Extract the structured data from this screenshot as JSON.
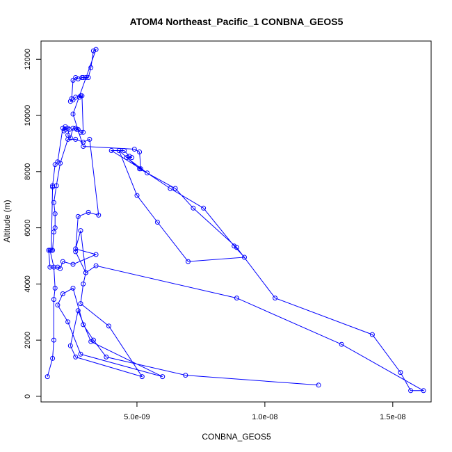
{
  "chart_data": {
    "type": "line",
    "title": "ATOM4 Northeast_Pacific_1 CONBNA_GEOS5",
    "xlabel": "CONBNA_GEOS5",
    "ylabel": "Altitude (m)",
    "xlim": [
      1.25e-09,
      1.65e-08
    ],
    "ylim": [
      -200,
      12650
    ],
    "xticks": [
      5e-09,
      1e-08,
      1.5e-08
    ],
    "xtick_labels": [
      "5.0e-09",
      "1.0e-08",
      "1.5e-08"
    ],
    "yticks": [
      0,
      2000,
      4000,
      6000,
      8000,
      10000,
      12000
    ],
    "ytick_labels": [
      "0",
      "2000",
      "4000",
      "6000",
      "8000",
      "10000",
      "12000"
    ],
    "grid": false,
    "legend": "none",
    "color": "#0000ff",
    "marker": "open-circle",
    "x": [
      1.5e-09,
      1.7e-09,
      1.75e-09,
      1.75e-09,
      1.8e-09,
      1.75e-09,
      1.6e-09,
      1.7e-09,
      1.75e-09,
      1.8e-09,
      1.8e-09,
      1.75e-09,
      1.85e-09,
      2e-09,
      2.3e-09,
      2.6e-09,
      2.9e-09,
      3.15e-09,
      3.5e-09,
      3.1e-09,
      2.7e-09,
      2.6e-09,
      3e-09,
      2.8e-09,
      2.6e-09,
      3.4e-09,
      2.5e-09,
      2.1e-09,
      2e-09,
      1.9e-09,
      1.6e-09,
      1.55e-09,
      1.65e-09,
      1.7e-09,
      1.7e-09,
      1.8e-09,
      1.9e-09,
      2.1e-09,
      2.2e-09,
      2.15e-09,
      2.2e-09,
      2.3e-09,
      2.35e-09,
      2.3e-09,
      2.4e-09,
      2.5e-09,
      2.6e-09,
      2.7e-09,
      2.65e-09,
      2.8e-09,
      2.9e-09,
      2.85e-09,
      2.75e-09,
      2.8e-09,
      2.6e-09,
      2.5e-09,
      2.4e-09,
      2.45e-09,
      2.5e-09,
      2.6e-09,
      2.7e-09,
      2.85e-09,
      2.9e-09,
      3e-09,
      3.1e-09,
      3.2e-09,
      3.3e-09,
      3.4e-09,
      2.5e-09,
      2.9e-09,
      4.9e-09,
      5.1e-09,
      5.15e-09,
      4e-09,
      4.5e-09,
      4.7e-09,
      4.8e-09,
      4.6e-09,
      5.4e-09,
      6.3e-09,
      7.6e-09,
      8.8e-09,
      9.2e-09,
      7e-09,
      5.8e-09,
      5e-09,
      4.3e-09,
      5.1e-09,
      6.5e-09,
      7.2e-09,
      8.9e-09,
      1.04e-08,
      1.42e-08,
      1.53e-08,
      1.57e-08,
      1.62e-08,
      1.3e-08,
      8.9e-09,
      3.4e-09,
      3e-09,
      2.9e-09,
      2.8e-09,
      3.9e-09,
      5.2e-09,
      2.6e-09,
      2.4e-09,
      2.7e-09,
      3.2e-09,
      6e-09,
      2.8e-09,
      2.3e-09,
      1.9e-09,
      2.1e-09,
      2.5e-09,
      2.9e-09,
      3.3e-09,
      3.8e-09,
      6.9e-09,
      1.21e-08
    ],
    "y": [
      700,
      1350,
      2000,
      3450,
      3850,
      4600,
      5200,
      5200,
      5850,
      6000,
      6500,
      6900,
      7500,
      8300,
      9150,
      9150,
      9050,
      9150,
      6450,
      6550,
      6400,
      5150,
      4400,
      5900,
      5250,
      5050,
      4700,
      4800,
      4550,
      4600,
      4600,
      5200,
      5200,
      7450,
      7500,
      8250,
      8350,
      9550,
      9600,
      9450,
      9500,
      9550,
      9500,
      9300,
      9200,
      9550,
      9550,
      9500,
      9500,
      9400,
      9400,
      10700,
      10650,
      10700,
      10650,
      10550,
      10500,
      10600,
      11250,
      11350,
      11300,
      11350,
      11350,
      11350,
      11350,
      11700,
      12300,
      12350,
      10050,
      8900,
      8800,
      8700,
      8100,
      8750,
      8750,
      8550,
      8500,
      8500,
      7950,
      7400,
      6700,
      5350,
      4950,
      4800,
      6200,
      7150,
      8750,
      8100,
      7400,
      6700,
      5300,
      3500,
      2200,
      850,
      200,
      200,
      1850,
      3500,
      4650,
      4400,
      4000,
      3300,
      2500,
      700,
      1400,
      1800,
      3050,
      1950,
      700,
      1500,
      2650,
      3250,
      3650,
      3850,
      2550,
      2000,
      1400,
      750,
      400
    ]
  }
}
